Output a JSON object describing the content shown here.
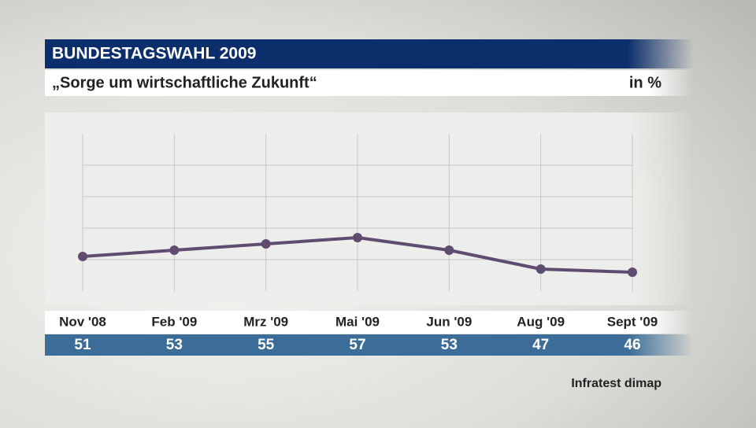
{
  "chart_data": {
    "type": "line",
    "title": "BUNDESTAGSWAHL 2009",
    "subtitle": "„Sorge um wirtschaftliche Zukunft“",
    "unit_label": "in %",
    "source": "Infratest dimap",
    "categories": [
      "Nov '08",
      "Feb '09",
      "Mrz '09",
      "Mai '09",
      "Jun '09",
      "Aug '09",
      "Sept '09"
    ],
    "values": [
      51,
      53,
      55,
      57,
      53,
      47,
      46
    ],
    "color": "#5f4c70",
    "ylim": [
      40,
      90
    ],
    "yticks": [
      50,
      60,
      70,
      80
    ],
    "grid": true
  }
}
